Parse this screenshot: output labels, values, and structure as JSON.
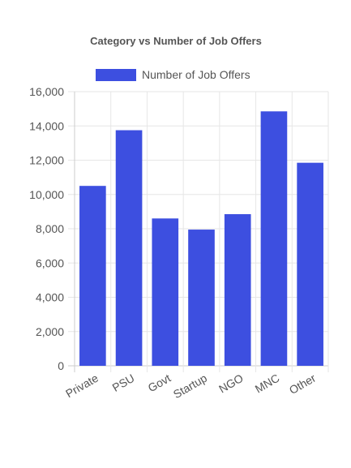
{
  "chart_data": {
    "type": "bar",
    "title": "Category vs Number of Job Offers",
    "categories": [
      "Private",
      "PSU",
      "Govt",
      "Startup",
      "NGO",
      "MNC",
      "Other"
    ],
    "series": [
      {
        "name": "Number of Job Offers",
        "values": [
          10500,
          13750,
          8600,
          7950,
          8850,
          14850,
          11850
        ],
        "color": "#3d4fe0"
      }
    ],
    "y_ticks": [
      "0",
      "2,000",
      "4,000",
      "6,000",
      "8,000",
      "10,000",
      "12,000",
      "14,000",
      "16,000"
    ],
    "ylim": [
      0,
      16000
    ],
    "grid": true,
    "legend_position": "top",
    "xlabel": "",
    "ylabel": ""
  }
}
